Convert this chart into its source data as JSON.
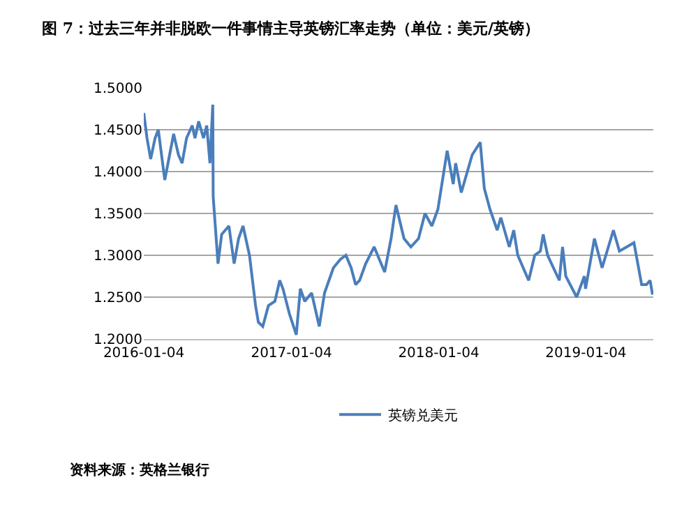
{
  "chart_data": {
    "type": "line",
    "title": "图 7：过去三年并非脱欧一件事情主导英镑汇率走势（单位：美元/英镑）",
    "annotations": [
      "资料来源：英格兰银行"
    ],
    "x": [
      "2016-01-04",
      "2016-01-12",
      "2016-01-21",
      "2016-02-01",
      "2016-02-09",
      "2016-02-25",
      "2016-03-08",
      "2016-03-18",
      "2016-03-30",
      "2016-04-08",
      "2016-04-19",
      "2016-05-03",
      "2016-05-10",
      "2016-05-19",
      "2016-05-31",
      "2016-06-08",
      "2016-06-16",
      "2016-06-23",
      "2016-06-24",
      "2016-06-30",
      "2016-07-06",
      "2016-07-15",
      "2016-08-02",
      "2016-08-15",
      "2016-08-26",
      "2016-09-06",
      "2016-09-22",
      "2016-10-07",
      "2016-10-14",
      "2016-10-25",
      "2016-11-08",
      "2016-11-24",
      "2016-12-06",
      "2016-12-14",
      "2016-12-30",
      "2017-01-16",
      "2017-01-26",
      "2017-02-06",
      "2017-02-23",
      "2017-03-14",
      "2017-03-27",
      "2017-04-18",
      "2017-05-05",
      "2017-05-19",
      "2017-06-01",
      "2017-06-12",
      "2017-06-22",
      "2017-07-07",
      "2017-07-28",
      "2017-08-23",
      "2017-09-08",
      "2017-09-20",
      "2017-10-10",
      "2017-10-27",
      "2017-11-15",
      "2017-12-01",
      "2017-12-18",
      "2018-01-02",
      "2018-01-25",
      "2018-02-09",
      "2018-02-15",
      "2018-03-01",
      "2018-03-28",
      "2018-04-17",
      "2018-04-27",
      "2018-05-11",
      "2018-05-29",
      "2018-06-07",
      "2018-06-28",
      "2018-07-09",
      "2018-07-19",
      "2018-08-15",
      "2018-08-30",
      "2018-09-13",
      "2018-09-20",
      "2018-10-01",
      "2018-10-30",
      "2018-11-07",
      "2018-11-15",
      "2018-12-12",
      "2018-12-31",
      "2019-01-03",
      "2019-01-25",
      "2019-02-13",
      "2019-03-13",
      "2019-03-28",
      "2019-04-15",
      "2019-05-03",
      "2019-05-22",
      "2019-06-03",
      "2019-06-12",
      "2019-06-18"
    ],
    "series": [
      {
        "name": "英镑兑美元",
        "color": "#4a7ebb",
        "values": [
          1.47,
          1.44,
          1.415,
          1.44,
          1.45,
          1.39,
          1.42,
          1.445,
          1.42,
          1.41,
          1.44,
          1.455,
          1.44,
          1.46,
          1.44,
          1.455,
          1.41,
          1.48,
          1.37,
          1.33,
          1.29,
          1.325,
          1.335,
          1.29,
          1.32,
          1.335,
          1.3,
          1.24,
          1.22,
          1.215,
          1.24,
          1.245,
          1.27,
          1.26,
          1.23,
          1.205,
          1.26,
          1.245,
          1.255,
          1.215,
          1.255,
          1.285,
          1.295,
          1.3,
          1.285,
          1.265,
          1.27,
          1.29,
          1.31,
          1.28,
          1.32,
          1.36,
          1.32,
          1.31,
          1.32,
          1.35,
          1.335,
          1.355,
          1.425,
          1.385,
          1.41,
          1.375,
          1.42,
          1.435,
          1.38,
          1.355,
          1.33,
          1.345,
          1.31,
          1.33,
          1.3,
          1.27,
          1.3,
          1.305,
          1.325,
          1.3,
          1.27,
          1.31,
          1.275,
          1.25,
          1.275,
          1.26,
          1.32,
          1.285,
          1.33,
          1.305,
          1.31,
          1.315,
          1.265,
          1.265,
          1.27,
          1.253
        ]
      }
    ],
    "xlim": [
      "2016-01-04",
      "2019-06-20"
    ],
    "xticks": [
      "2016-01-04",
      "2017-01-04",
      "2018-01-04",
      "2019-01-04"
    ],
    "ylim": [
      1.2,
      1.5
    ],
    "yticks": [
      {
        "value": 1.2,
        "label": "1.2000"
      },
      {
        "value": 1.25,
        "label": "1.2500"
      },
      {
        "value": 1.3,
        "label": "1.3000"
      },
      {
        "value": 1.35,
        "label": "1.3500"
      },
      {
        "value": 1.4,
        "label": "1.4000"
      },
      {
        "value": 1.45,
        "label": "1.4500"
      },
      {
        "value": 1.5,
        "label": "1.5000"
      }
    ],
    "grid": "y",
    "legend": "bottom",
    "marker": "none",
    "line_style": "solid"
  }
}
